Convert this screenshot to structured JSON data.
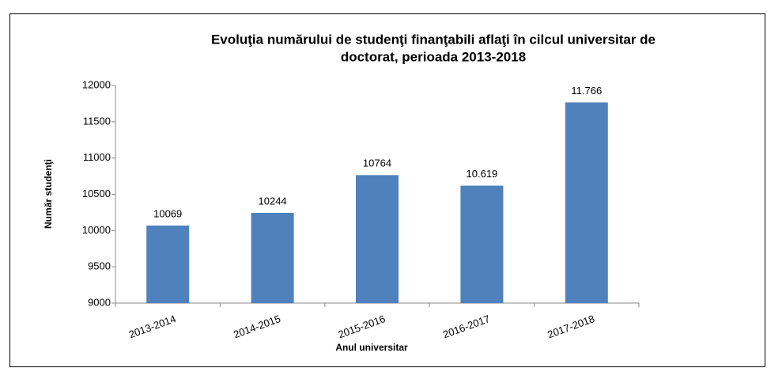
{
  "chart_data": {
    "type": "bar",
    "title": [
      "Evoluţia numărului de studenţi finanţabili aflaţi în cilcul universitar de",
      "doctorat, perioada 2013-2018"
    ],
    "x_label": "Anul universitar",
    "y_label": "Număr studenţi",
    "categories": [
      "2013-2014",
      "2014-2015",
      "2015-2016",
      "2016-2017",
      "2017-2018"
    ],
    "values": [
      10069,
      10244,
      10764,
      10619,
      11766
    ],
    "value_labels": [
      "10069",
      "10244",
      "10764",
      "10.619",
      "11.766"
    ],
    "color": "#4f81bd",
    "ylim": [
      9000,
      12000
    ],
    "yticks": [
      9000,
      9500,
      10000,
      10500,
      11000,
      11500,
      12000
    ],
    "grid": false
  }
}
